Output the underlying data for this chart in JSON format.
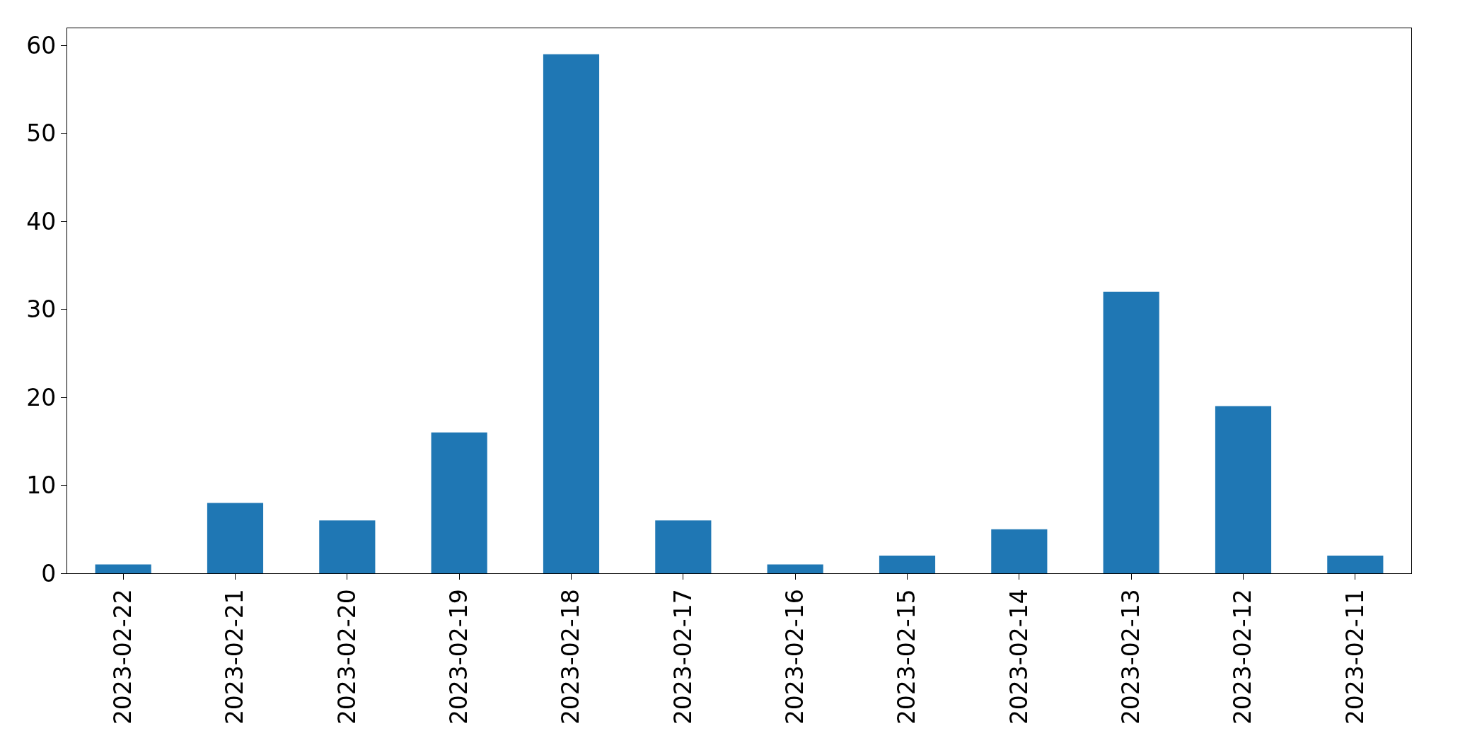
{
  "chart_data": {
    "type": "bar",
    "categories": [
      "2023-02-22",
      "2023-02-21",
      "2023-02-20",
      "2023-02-19",
      "2023-02-18",
      "2023-02-17",
      "2023-02-16",
      "2023-02-15",
      "2023-02-14",
      "2023-02-13",
      "2023-02-12",
      "2023-02-11"
    ],
    "values": [
      1,
      8,
      6,
      16,
      59,
      6,
      1,
      2,
      5,
      32,
      19,
      2
    ],
    "color": "#1f77b4",
    "ylim": [
      0,
      61.95
    ],
    "yticks": [
      0,
      10,
      20,
      30,
      40,
      50,
      60
    ]
  }
}
